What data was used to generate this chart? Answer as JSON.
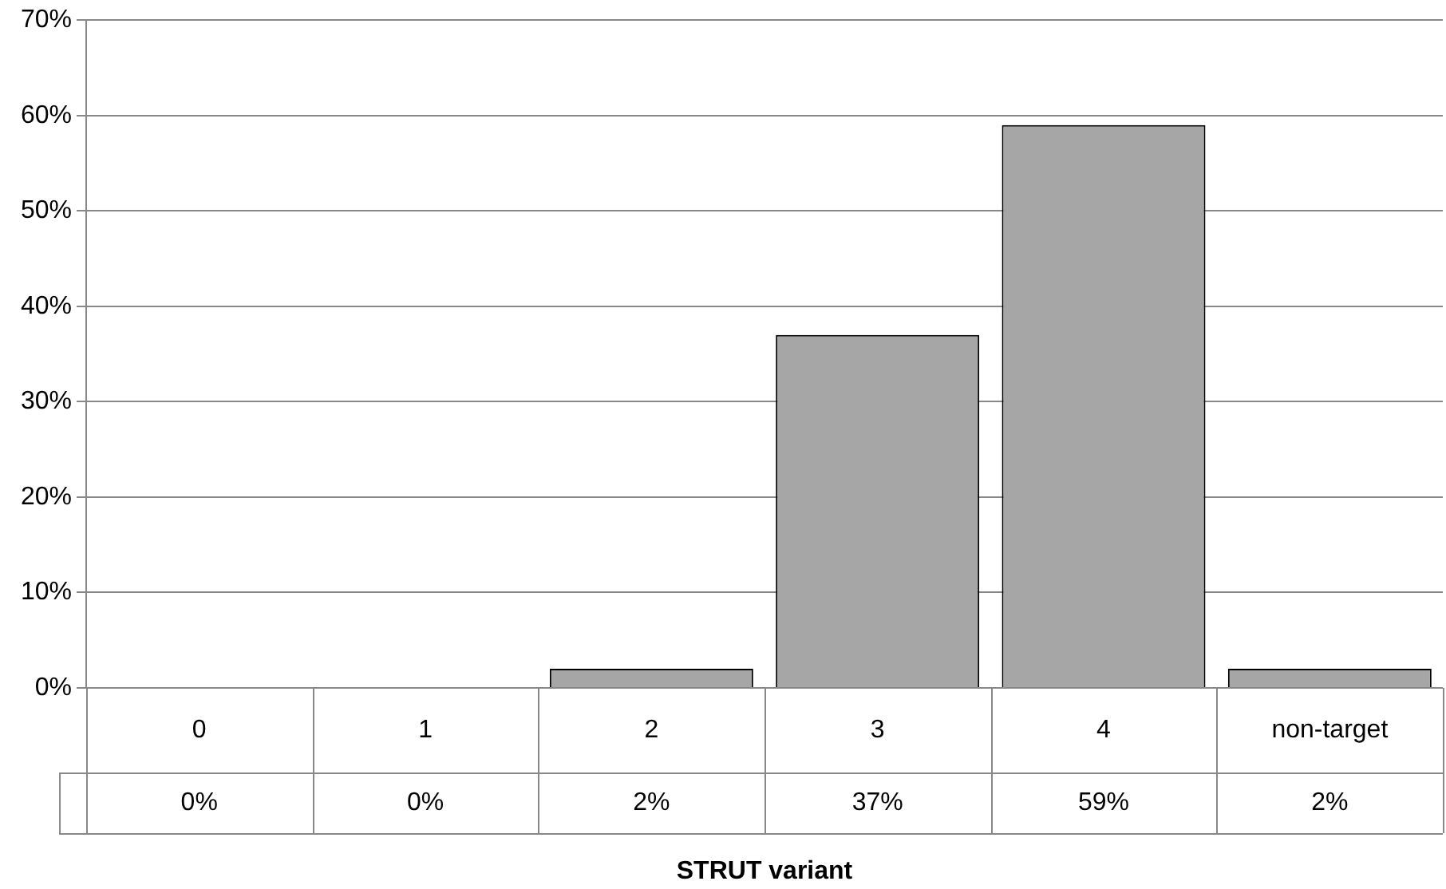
{
  "chart_data": {
    "type": "bar",
    "xlabel": "STRUT variant",
    "categories": [
      "0",
      "1",
      "2",
      "3",
      "4",
      "non-target"
    ],
    "values": [
      0,
      0,
      2,
      37,
      59,
      2
    ],
    "value_labels": [
      "0%",
      "0%",
      "2%",
      "37%",
      "59%",
      "2%"
    ],
    "color": "#a6a6a6",
    "ylim": [
      0,
      70
    ],
    "yticks": [
      {
        "value": 0,
        "label": "0%"
      },
      {
        "value": 10,
        "label": "10%"
      },
      {
        "value": 20,
        "label": "20%"
      },
      {
        "value": 30,
        "label": "30%"
      },
      {
        "value": 40,
        "label": "40%"
      },
      {
        "value": 50,
        "label": "50%"
      },
      {
        "value": 60,
        "label": "60%"
      },
      {
        "value": 70,
        "label": "70%"
      }
    ],
    "grid": "y",
    "legend": false
  }
}
